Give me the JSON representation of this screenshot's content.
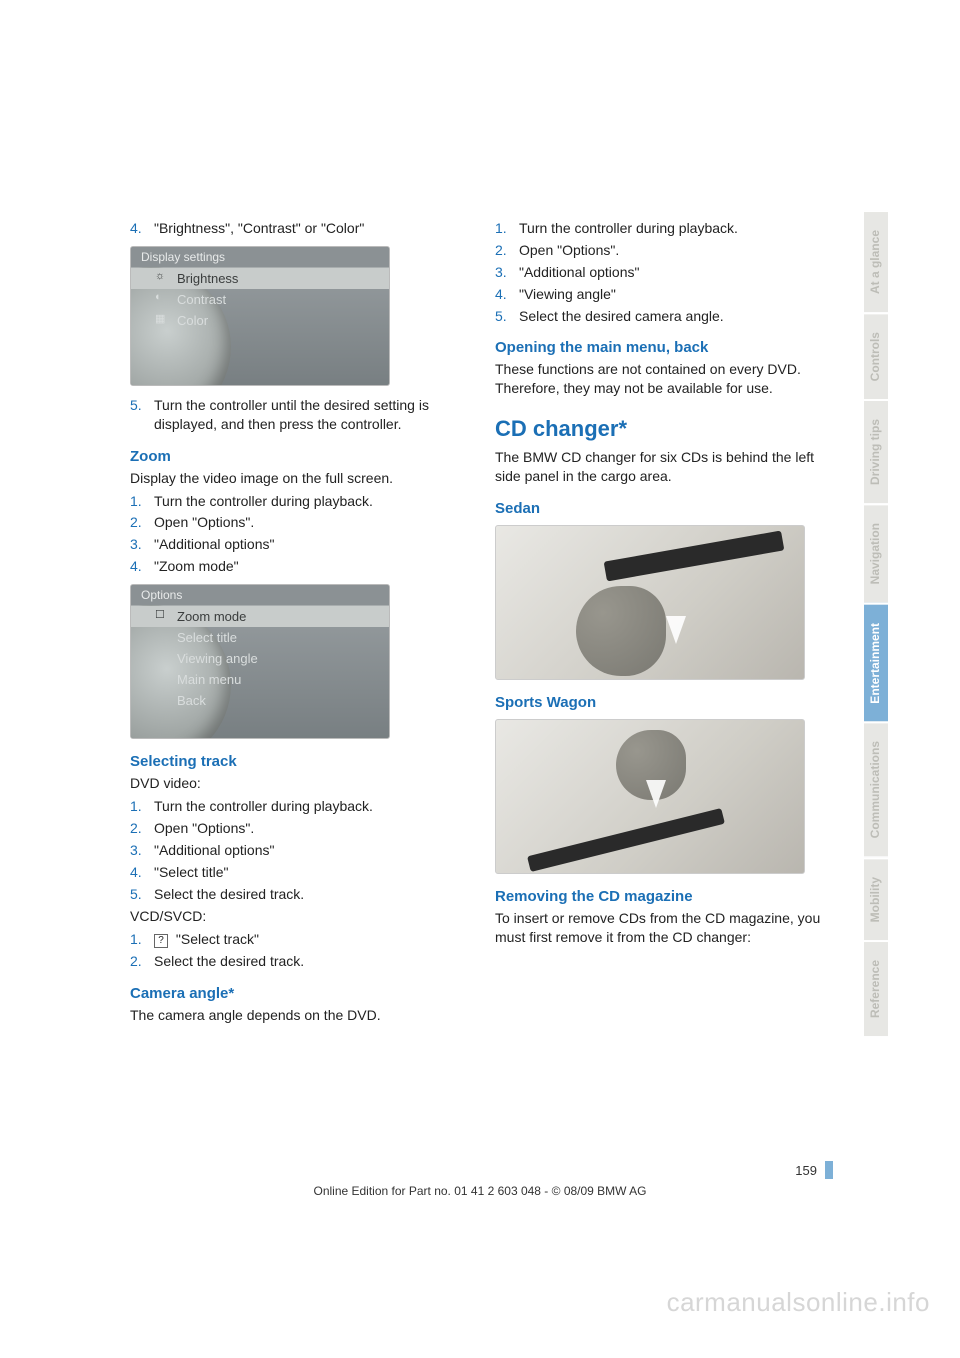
{
  "left": {
    "list1": {
      "n4": "4.",
      "i4": "\"Brightness\", \"Contrast\" or \"Color\""
    },
    "screen1": {
      "header": "Display settings",
      "r1": "Brightness",
      "r2": "Contrast",
      "r3": "Color"
    },
    "list1b": {
      "n5": "5.",
      "i5": "Turn the controller until the desired setting is displayed, and then press the controller."
    },
    "zoom": {
      "h": "Zoom",
      "p": "Display the video image on the full screen.",
      "n1": "1.",
      "i1": "Turn the controller during playback.",
      "n2": "2.",
      "i2": "Open \"Options\".",
      "n3": "3.",
      "i3": "\"Additional options\"",
      "n4": "4.",
      "i4": "\"Zoom mode\""
    },
    "screen2": {
      "header": "Options",
      "r1": "Zoom mode",
      "r2": "Select title",
      "r3": "Viewing angle",
      "r4": "Main menu",
      "r5": "Back"
    },
    "seltrack": {
      "h": "Selecting track",
      "p1": "DVD video:",
      "n1": "1.",
      "i1": "Turn the controller during playback.",
      "n2": "2.",
      "i2": "Open \"Options\".",
      "n3": "3.",
      "i3": "\"Additional options\"",
      "n4": "4.",
      "i4": "\"Select title\"",
      "n5": "5.",
      "i5": "Select the desired track.",
      "p2": "VCD/SVCD:",
      "n6": "1.",
      "i6": " \"Select track\"",
      "n7": "2.",
      "i7": "Select the desired track."
    },
    "camera": {
      "h": "Camera angle*",
      "p": "The camera angle depends on the DVD."
    }
  },
  "right": {
    "cam": {
      "n1": "1.",
      "i1": "Turn the controller during playback.",
      "n2": "2.",
      "i2": "Open \"Options\".",
      "n3": "3.",
      "i3": "\"Additional options\"",
      "n4": "4.",
      "i4": "\"Viewing angle\"",
      "n5": "5.",
      "i5": "Select the desired camera angle."
    },
    "mainmenu": {
      "h": "Opening the main menu, back",
      "p": "These functions are not contained on every DVD. Therefore, they may not be available for use."
    },
    "cdchanger": {
      "h": "CD changer*",
      "p": "The BMW CD changer for six CDs is behind the left side panel in the cargo area."
    },
    "sedan": "Sedan",
    "sports": "Sports Wagon",
    "removing": {
      "h": "Removing the CD magazine",
      "p": "To insert or remove CDs from the CD magazine, you must first remove it from the CD changer:"
    }
  },
  "tabs": {
    "t1": "At a glance",
    "t2": "Controls",
    "t3": "Driving tips",
    "t4": "Navigation",
    "t5": "Entertainment",
    "t6": "Communications",
    "t7": "Mobility",
    "t8": "Reference"
  },
  "footer": "Online Edition for Part no. 01 41 2 603 048 - © 08/09 BMW AG",
  "pagenum": "159",
  "watermark": "carmanualsonline.info",
  "glyph": "?"
}
